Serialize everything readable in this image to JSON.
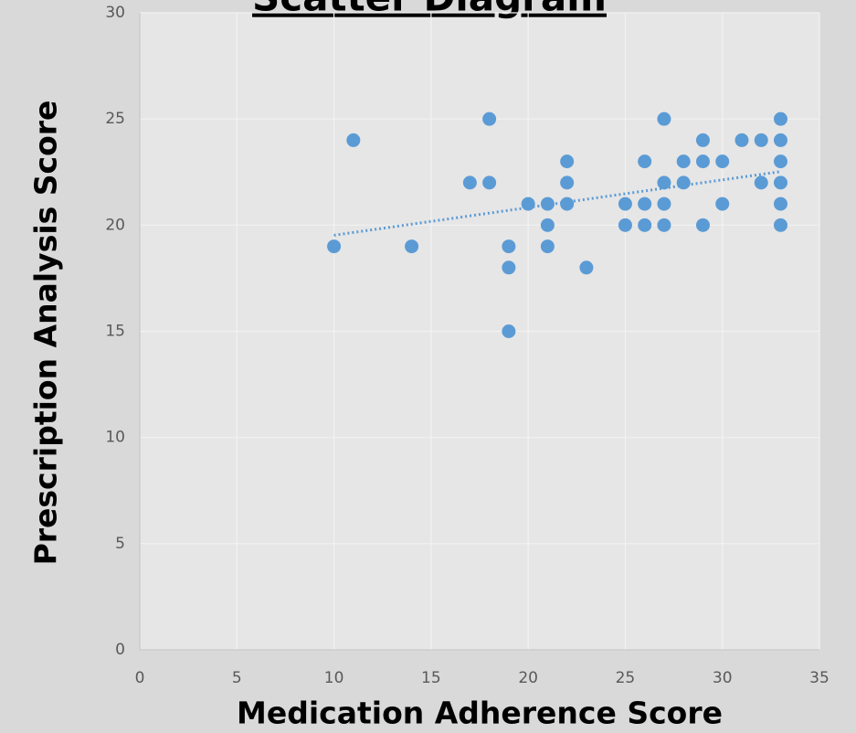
{
  "chart_data": {
    "type": "scatter",
    "title": "Scatter Diagram",
    "x_label": "Medication Adherence Score",
    "y_label": "Prescription Analysis Score",
    "x": [
      10,
      11,
      14,
      17,
      18,
      18,
      19,
      19,
      19,
      20,
      21,
      21,
      21,
      22,
      22,
      22,
      23,
      25,
      25,
      26,
      26,
      26,
      27,
      27,
      27,
      27,
      28,
      28,
      29,
      29,
      29,
      30,
      30,
      31,
      32,
      32,
      33,
      33,
      33,
      33,
      33,
      33
    ],
    "values": [
      19,
      24,
      19,
      22,
      25,
      22,
      19,
      18,
      15,
      21,
      21,
      20,
      19,
      23,
      22,
      21,
      18,
      21,
      20,
      23,
      21,
      20,
      25,
      22,
      21,
      20,
      23,
      22,
      24,
      23,
      20,
      23,
      21,
      24,
      24,
      22,
      25,
      24,
      23,
      22,
      21,
      20
    ],
    "color": "#5b9bd5",
    "trendline": true,
    "grid": true,
    "xlim": [
      0,
      35
    ],
    "xticks": [
      0,
      5,
      10,
      15,
      20,
      25,
      30,
      35
    ],
    "ylim": [
      0,
      30
    ],
    "yticks": [
      0,
      5,
      10,
      15,
      20,
      25,
      30
    ]
  }
}
